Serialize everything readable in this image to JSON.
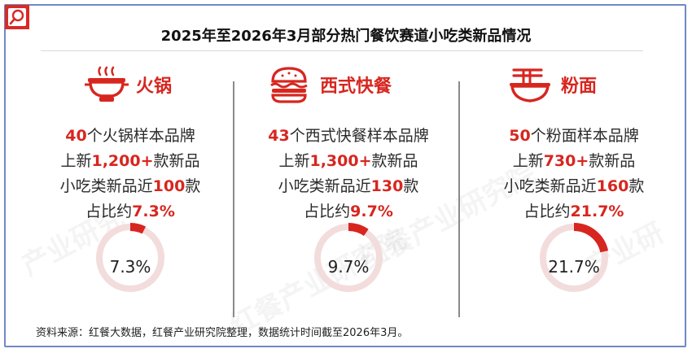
{
  "title": "2025年至2026年3月部分热门餐饮赛道小吃类新品情况",
  "watermarks": [
    "产业研究",
    "红餐产业研究院",
    "红餐产业研究院",
    "产业研"
  ],
  "colors": {
    "accent": "#d7261f",
    "ring": "#f3dcdc",
    "frame": "#6f89c8"
  },
  "categories": [
    {
      "name": "火锅",
      "icon": "hotpot-icon",
      "brand_count": "40",
      "brand_text": "个火锅样本品牌",
      "launch_prefix": "上新",
      "launch_count": "1,200+",
      "launch_suffix": "款新品",
      "snack_prefix": "小吃类新品近",
      "snack_count": "100",
      "snack_suffix": "款",
      "share_prefix": "占比约",
      "share_text": "7.3%",
      "donut_label": "7.3%"
    },
    {
      "name": "西式快餐",
      "icon": "burger-icon",
      "brand_count": "43",
      "brand_text": "个西式快餐样本品牌",
      "launch_prefix": "上新",
      "launch_count": "1,300+",
      "launch_suffix": "款新品",
      "snack_prefix": "小吃类新品近",
      "snack_count": "130",
      "snack_suffix": "款",
      "share_prefix": "占比约",
      "share_text": "9.7%",
      "donut_label": "9.7%"
    },
    {
      "name": "粉面",
      "icon": "noodle-bowl-icon",
      "brand_count": "50",
      "brand_text": "个粉面样本品牌",
      "launch_prefix": "上新",
      "launch_count": "730+",
      "launch_suffix": "款新品",
      "snack_prefix": "小吃类新品近",
      "snack_count": "160",
      "snack_suffix": "款",
      "share_prefix": "占比约",
      "share_text": "21.7%",
      "donut_label": "21.7%"
    }
  ],
  "chart_data": {
    "type": "pie",
    "series": [
      {
        "name": "火锅",
        "value": 7.3,
        "unit": "%"
      },
      {
        "name": "西式快餐",
        "value": 9.7,
        "unit": "%"
      },
      {
        "name": "粉面",
        "value": 21.7,
        "unit": "%"
      }
    ]
  },
  "source": "资料来源：红餐大数据，红餐产业研究院整理，数据统计时间截至2026年3月。"
}
